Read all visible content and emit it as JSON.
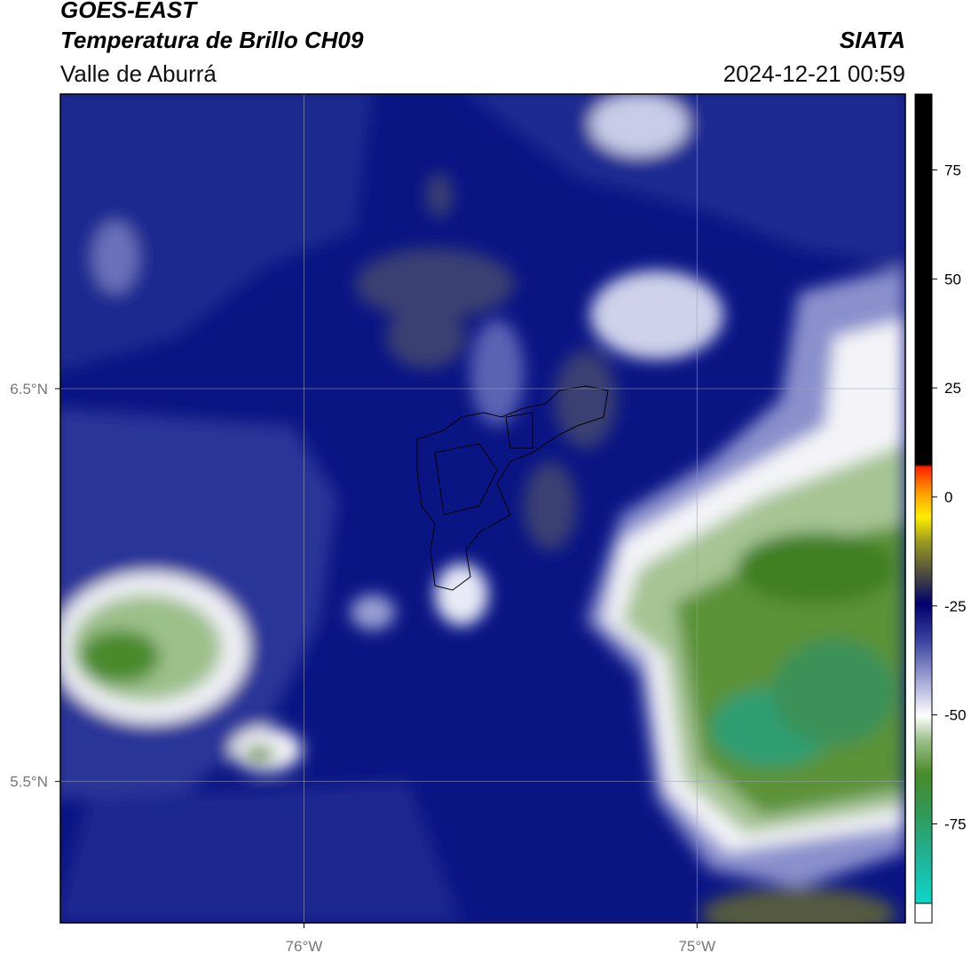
{
  "header": {
    "title": "GOES-EAST",
    "subtitle": "Temperatura de Brillo CH09",
    "region": "Valle de Aburrá",
    "source": "SIATA",
    "datetime": "2024-12-21 00:59"
  },
  "map": {
    "xlim": [
      -76.62,
      -74.47
    ],
    "ylim": [
      5.14,
      7.25
    ],
    "xticks": [
      {
        "value": -76,
        "label": "76°W"
      },
      {
        "value": -75,
        "label": "75°W"
      }
    ],
    "yticks": [
      {
        "value": 5.5,
        "label": "5.5°N"
      },
      {
        "value": 6.5,
        "label": "6.5°N"
      }
    ],
    "grid": true
  },
  "colorbar": {
    "lim": [
      -97.7,
      92.4
    ],
    "ticks": [
      -75,
      -50,
      -25,
      0,
      25,
      50,
      75
    ]
  }
}
